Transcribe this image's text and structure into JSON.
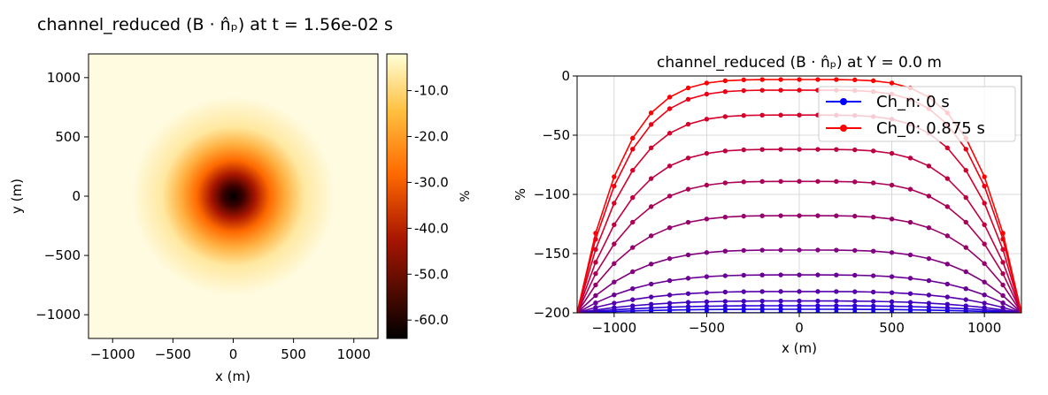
{
  "figure": {
    "suptitle": "channel_reduced (B · n̂ₚ) at t = 1.56e-02 s"
  },
  "chart_data": [
    {
      "type": "heatmap",
      "title": "channel_reduced (B · n̂ₚ) at t = 1.56e-02 s",
      "xlabel": "x (m)",
      "ylabel": "y (m)",
      "xlim": [
        -1200,
        1200
      ],
      "ylim": [
        -1200,
        1200
      ],
      "xticks": [
        -1000,
        -500,
        0,
        500,
        1000
      ],
      "xtick_labels": [
        "−1000",
        "−500",
        "0",
        "500",
        "1000"
      ],
      "yticks": [
        1000,
        500,
        0,
        -500,
        -1000
      ],
      "ytick_labels": [
        "1000",
        "500",
        "0",
        "−500",
        "−1000"
      ],
      "colormap": "afmhot",
      "value_range": [
        -64,
        -2
      ],
      "field": {
        "center": [
          0,
          0
        ],
        "min_value": -64,
        "background_value": -2,
        "decay_radius_m": 350
      },
      "colorbar": {
        "label": "%",
        "ticks": [
          -10,
          -20,
          -30,
          -40,
          -50,
          -60
        ],
        "tick_labels": [
          "-10.0",
          "-20.0",
          "-30.0",
          "-40.0",
          "-50.0",
          "-60.0"
        ]
      }
    },
    {
      "type": "line",
      "title": "channel_reduced (B · n̂ₚ) at Y = 0.0 m",
      "xlabel": "x (m)",
      "ylabel": "%",
      "xlim": [
        -1200,
        1200
      ],
      "ylim": [
        -200,
        0
      ],
      "grid": true,
      "xticks": [
        -1000,
        -500,
        0,
        500,
        1000
      ],
      "xtick_labels": [
        "−1000",
        "−500",
        "0",
        "500",
        "1000"
      ],
      "yticks": [
        0,
        -50,
        -100,
        -150,
        -200
      ],
      "ytick_labels": [
        "0",
        "−50",
        "−100",
        "−150",
        "−200"
      ],
      "x": [
        -1200,
        -1100,
        -1000,
        -900,
        -800,
        -700,
        -600,
        -500,
        -400,
        -300,
        -200,
        -100,
        0,
        100,
        200,
        300,
        400,
        500,
        600,
        700,
        800,
        900,
        1000,
        1100,
        1200
      ],
      "color_start": "#0000ff",
      "color_end": "#ff0000",
      "series": [
        {
          "name": "Ch_n: 0 s",
          "center": -200,
          "edge": -200
        },
        {
          "name": "",
          "center": -197,
          "edge": -200
        },
        {
          "name": "",
          "center": -194,
          "edge": -200
        },
        {
          "name": "",
          "center": -190,
          "edge": -200
        },
        {
          "name": "",
          "center": -182,
          "edge": -200
        },
        {
          "name": "",
          "center": -168,
          "edge": -200
        },
        {
          "name": "",
          "center": -147,
          "edge": -200
        },
        {
          "name": "",
          "center": -118,
          "edge": -200
        },
        {
          "name": "",
          "center": -89,
          "edge": -200
        },
        {
          "name": "",
          "center": -62,
          "edge": -200
        },
        {
          "name": "",
          "center": -33,
          "edge": -200
        },
        {
          "name": "",
          "center": -12,
          "edge": -200
        },
        {
          "name": "Ch_0: 0.875 s",
          "center": -3,
          "edge": -200
        }
      ],
      "legend": {
        "location": "upper right",
        "entries": [
          {
            "label": "Ch_n: 0 s",
            "color": "#0000ff"
          },
          {
            "label": "Ch_0: 0.875 s",
            "color": "#ff0000"
          }
        ]
      }
    }
  ]
}
